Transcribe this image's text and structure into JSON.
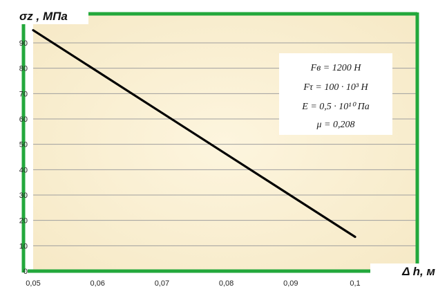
{
  "chart_data": {
    "type": "line",
    "title": "",
    "xlabel": "Δ h, м",
    "ylabel": "σz , МПа",
    "xlim": [
      0.05,
      0.1
    ],
    "ylim": [
      0,
      95
    ],
    "grid": true,
    "xticks": [
      "0,05",
      "0,06",
      "0,07",
      "0,08",
      "0,09",
      "0,1"
    ],
    "yticks": [
      "0",
      "10",
      "20",
      "30",
      "40",
      "50",
      "60",
      "70",
      "80",
      "90"
    ],
    "series": [
      {
        "x": [
          0.05,
          0.1
        ],
        "y": [
          95,
          13.5
        ],
        "color": "#000000"
      }
    ],
    "annotation": {
      "lines": [
        "Fв = 1200 Н",
        "Fτ = 100 · 10³ Н",
        "E = 0,5 · 10¹⁰ Па",
        "μ = 0,208"
      ],
      "placement": "top-right"
    },
    "colors": {
      "plot_background": "#fbf1d5",
      "frame": "#23a83c",
      "line": "#000000",
      "grid": "#9e9e9e"
    }
  }
}
